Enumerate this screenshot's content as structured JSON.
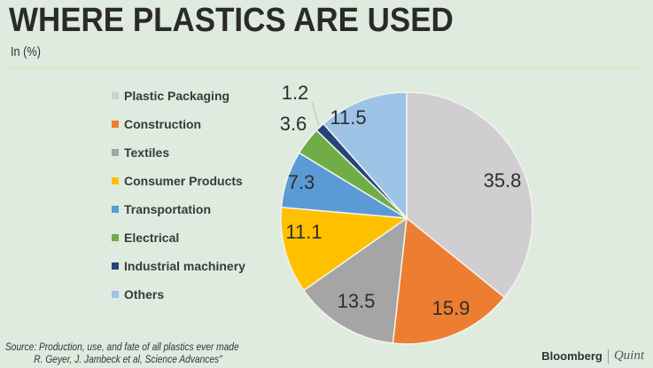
{
  "header": {
    "title": "WHERE PLASTICS ARE USED",
    "subtitle": "In (%)"
  },
  "legend": [
    {
      "label": "Plastic Packaging",
      "color": "#d0ced0"
    },
    {
      "label": "Construction",
      "color": "#ed7d31"
    },
    {
      "label": "Textiles",
      "color": "#a5a5a5"
    },
    {
      "label": "Consumer Products",
      "color": "#ffc000"
    },
    {
      "label": "Transportation",
      "color": "#5b9bd5"
    },
    {
      "label": "Electrical",
      "color": "#70ad47"
    },
    {
      "label": "Industrial machinery",
      "color": "#264478"
    },
    {
      "label": "Others",
      "color": "#9dc3e6"
    }
  ],
  "footer": {
    "source_line1": "Source: Production, use, and fate of all plastics ever made",
    "source_line2": "R. Geyer, J. Jambeck et al, Science Advances\"",
    "brand": "Bloomberg",
    "brand2": "Quint"
  },
  "chart_data": {
    "type": "pie",
    "title": "WHERE PLASTICS ARE USED",
    "subtitle": "In (%)",
    "categories": [
      "Plastic Packaging",
      "Construction",
      "Textiles",
      "Consumer Products",
      "Transportation",
      "Electrical",
      "Industrial machinery",
      "Others"
    ],
    "values": [
      35.8,
      15.9,
      13.5,
      11.1,
      7.3,
      3.6,
      1.2,
      11.5
    ],
    "colors": [
      "#d0ced0",
      "#ed7d31",
      "#a5a5a5",
      "#ffc000",
      "#5b9bd5",
      "#70ad47",
      "#264478",
      "#9dc3e6"
    ],
    "legend_position": "left",
    "start_angle": "12 o'clock, clockwise"
  }
}
